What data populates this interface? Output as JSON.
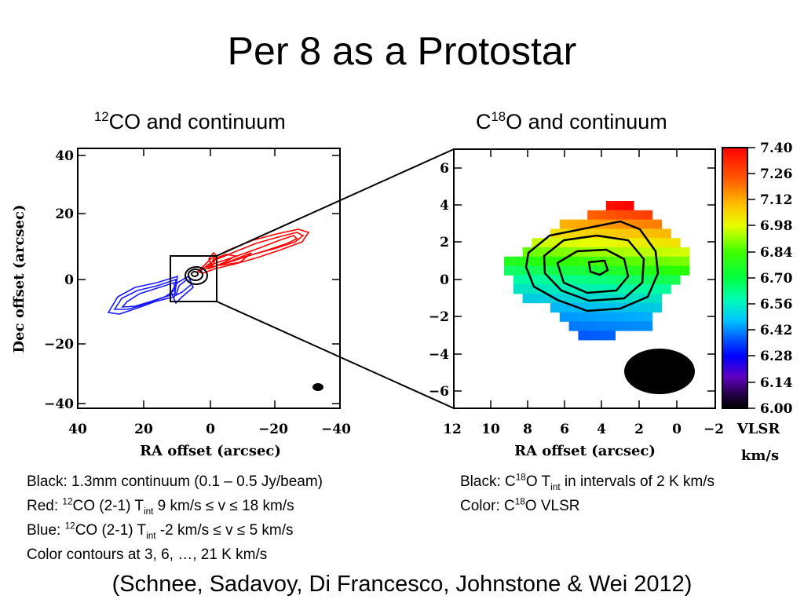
{
  "slide": {
    "title": "Per 8 as a Protostar",
    "citation": "(Schnee, Sadavoy, Di Francesco, Johnstone & Wei 2012)"
  },
  "left_panel": {
    "title_sup": "12",
    "title_rest": "CO and continuum",
    "xlabel": "RA offset (arcsec)",
    "ylabel": "Dec offset (arcsec)",
    "x_ticks": [
      "40",
      "20",
      "0",
      "−20",
      "−40"
    ],
    "y_ticks": [
      "40",
      "20",
      "0",
      "−20",
      "−40"
    ],
    "colors": {
      "red_lobe": "#ff0000",
      "blue_lobe": "#1a1aff",
      "continuum": "#000000"
    }
  },
  "right_panel": {
    "title_pre": "C",
    "title_sup": "18",
    "title_rest": "O and continuum",
    "xlabel": "RA offset (arcsec)",
    "x_ticks": [
      "12",
      "10",
      "8",
      "6",
      "4",
      "2",
      "0",
      "−2"
    ],
    "y_ticks": [
      "6",
      "4",
      "2",
      "0",
      "−2",
      "−4",
      "−6"
    ],
    "colorbar": {
      "ticks": [
        "7.40",
        "7.26",
        "7.12",
        "6.98",
        "6.84",
        "6.70",
        "6.56",
        "6.42",
        "6.28",
        "6.14",
        "6.00"
      ],
      "label_line1": "VLSR",
      "label_line2": "km/s",
      "range": [
        6.0,
        7.4
      ]
    }
  },
  "captions_left": {
    "line1": "Black: 1.3mm continuum (0.1 – 0.5 Jy/beam)",
    "line2_pre": "Red: ",
    "line2_sup": "12",
    "line2_mid": "CO (2-1) T",
    "line2_sub": "int",
    "line2_post": " 9 km/s ≤ v ≤ 18 km/s",
    "line3_pre": "Blue: ",
    "line3_sup": "12",
    "line3_mid": "CO (2-1) T",
    "line3_sub": "int",
    "line3_post": " -2 km/s ≤ v ≤ 5 km/s",
    "line4": "Color contours at 3, 6, …, 21 K km/s"
  },
  "captions_right": {
    "line1_pre": "Black: C",
    "line1_sup": "18",
    "line1_mid": "O T",
    "line1_sub": "int",
    "line1_post": " in intervals of 2 K km/s",
    "line2_pre": "Color: C",
    "line2_sup": "18",
    "line2_post": "O VLSR"
  }
}
